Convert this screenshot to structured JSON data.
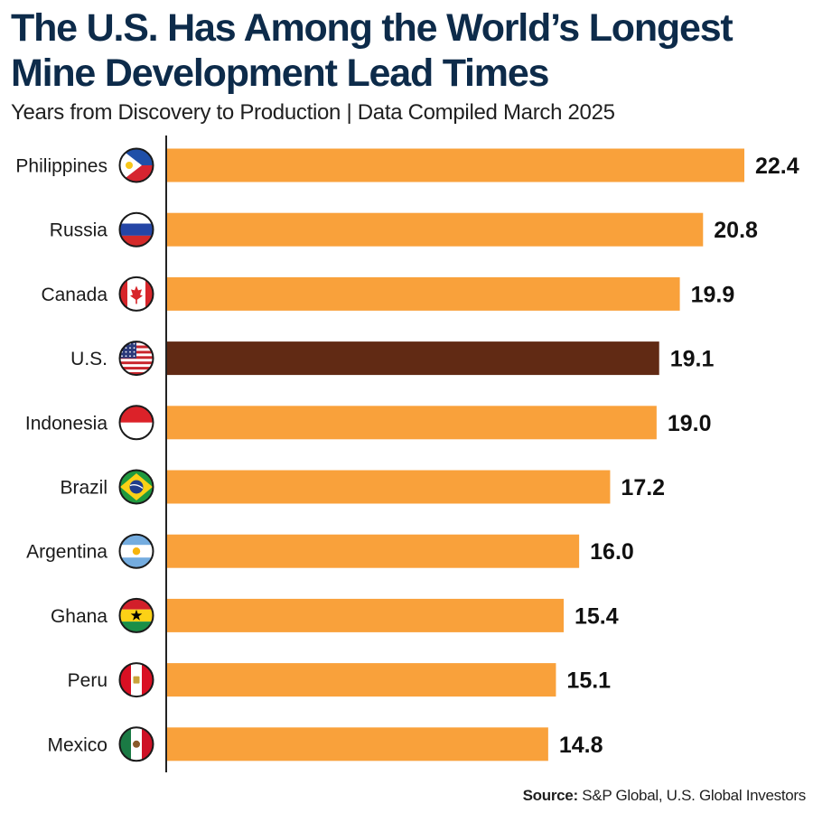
{
  "title_line1": "The U.S. Has Among the World’s Longest",
  "title_line2": "Mine Development Lead Times",
  "subtitle": "Years from Discovery to Production | Data Compiled March 2025",
  "source_label": "Source:",
  "source_text": " S&P Global, U.S. Global Investors",
  "colors": {
    "bar": "#f9a13b",
    "highlight_bar": "#612a14",
    "title": "#0d2b4a",
    "axis": "#222222"
  },
  "chart_data": {
    "type": "bar",
    "orientation": "horizontal",
    "categories": [
      "Philippines",
      "Russia",
      "Canada",
      "U.S.",
      "Indonesia",
      "Brazil",
      "Argentina",
      "Ghana",
      "Peru",
      "Mexico"
    ],
    "values": [
      22.4,
      20.8,
      19.9,
      19.1,
      19.0,
      17.2,
      16.0,
      15.4,
      15.1,
      14.8
    ],
    "labels": [
      "22.4",
      "20.8",
      "19.9",
      "19.1",
      "19.0",
      "17.2",
      "16.0",
      "15.4",
      "15.1",
      "14.8"
    ],
    "highlight": "U.S.",
    "flag_icons": [
      "philippines-flag-icon",
      "russia-flag-icon",
      "canada-flag-icon",
      "usa-flag-icon",
      "indonesia-flag-icon",
      "brazil-flag-icon",
      "argentina-flag-icon",
      "ghana-flag-icon",
      "peru-flag-icon",
      "mexico-flag-icon"
    ],
    "xlim": [
      0,
      22.4
    ],
    "grid": false,
    "legend": "none"
  }
}
